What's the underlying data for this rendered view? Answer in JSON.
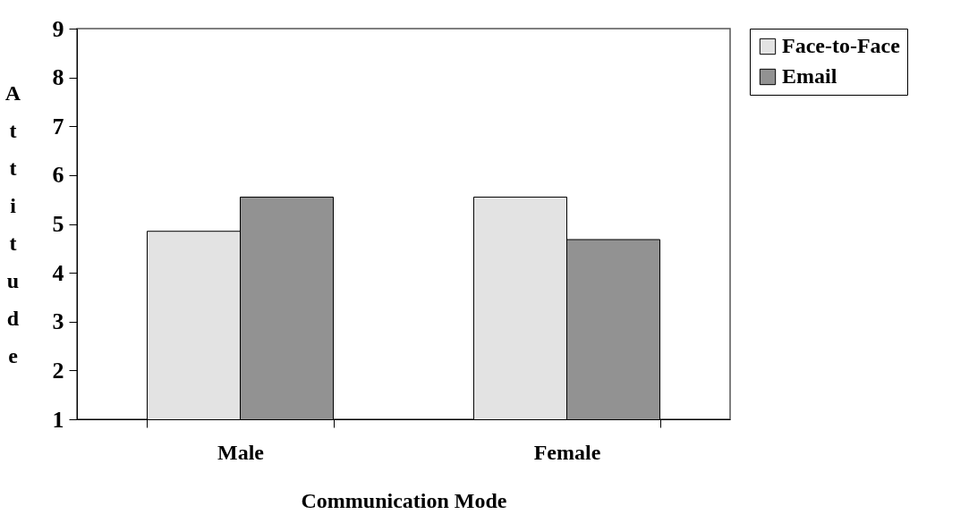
{
  "chart_data": {
    "type": "bar",
    "xlabel": "Communication Mode",
    "ylabel": "Attitude",
    "categories": [
      "Male",
      "Female"
    ],
    "series": [
      {
        "name": "Face-to-Face",
        "color": "#e3e3e3",
        "values": [
          4.85,
          5.55
        ]
      },
      {
        "name": "Email",
        "color": "#929292",
        "values": [
          5.55,
          4.68
        ]
      }
    ],
    "ylim": [
      1,
      9
    ],
    "yticks": [
      1,
      2,
      3,
      4,
      5,
      6,
      7,
      8,
      9
    ],
    "grid": false,
    "legend": "right"
  }
}
